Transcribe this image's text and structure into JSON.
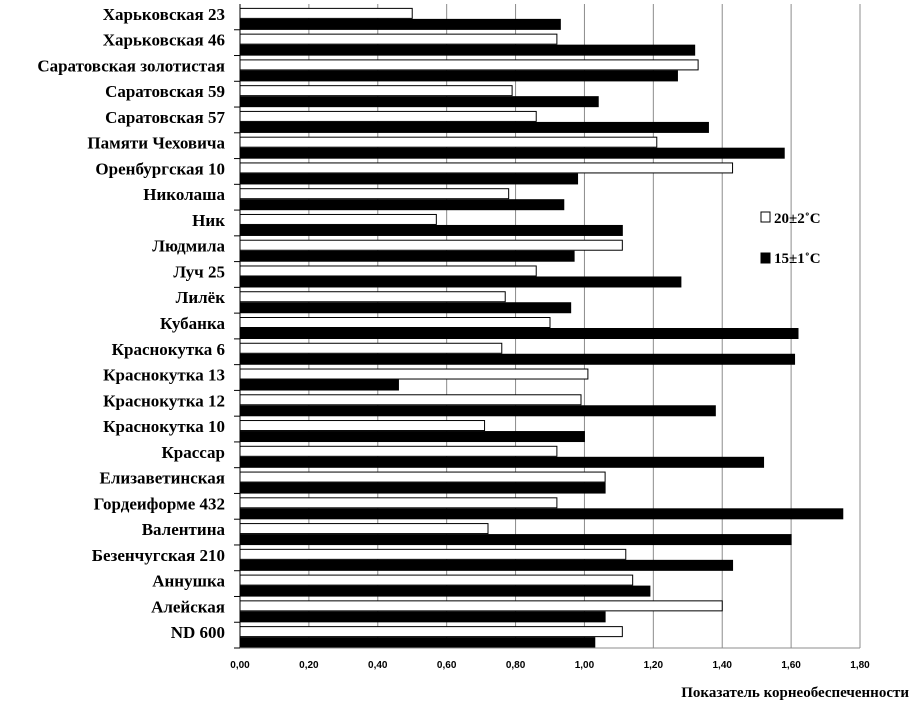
{
  "chart_data": {
    "type": "bar",
    "orientation": "horizontal",
    "categories": [
      "Харьковская 23",
      "Харьковская 46",
      "Саратовская золотистая",
      "Саратовская 59",
      "Саратовская 57",
      "Памяти Чеховича",
      "Оренбургская 10",
      "Николаша",
      "Ник",
      "Людмила",
      "Луч 25",
      "Лилёк",
      "Кубанка",
      "Краснокутка 6",
      "Краснокутка 13",
      "Краснокутка 12",
      "Краснокутка 10",
      "Крассар",
      "Елизаветинская",
      "Гордеиформе 432",
      "Валентина",
      "Безенчугская 210",
      "Аннушка",
      "Алейская",
      "ND 600"
    ],
    "series": [
      {
        "name": "20±2˚C",
        "color": "#ffffff",
        "values": [
          0.5,
          0.92,
          1.33,
          0.79,
          0.86,
          1.21,
          1.43,
          0.78,
          0.57,
          1.11,
          0.86,
          0.77,
          0.9,
          0.76,
          1.01,
          0.99,
          0.71,
          0.92,
          1.06,
          0.92,
          0.72,
          1.12,
          1.14,
          1.4,
          1.11
        ]
      },
      {
        "name": "15±1˚C",
        "color": "#000000",
        "values": [
          0.93,
          1.32,
          1.27,
          1.04,
          1.36,
          1.58,
          0.98,
          0.94,
          1.11,
          0.97,
          1.28,
          0.96,
          1.62,
          1.61,
          0.46,
          1.38,
          1.0,
          1.52,
          1.06,
          1.75,
          1.6,
          1.43,
          1.19,
          1.06,
          1.03
        ]
      }
    ],
    "xlabel": "Показатель корнеобеспеченности",
    "ylabel": "",
    "xlim": [
      0,
      1.8
    ],
    "xticks": [
      "0,00",
      "0,20",
      "0,40",
      "0,60",
      "0,80",
      "1,00",
      "1,20",
      "1,40",
      "1,60",
      "1,80"
    ],
    "grid": "vertical",
    "legend_position": "right"
  }
}
